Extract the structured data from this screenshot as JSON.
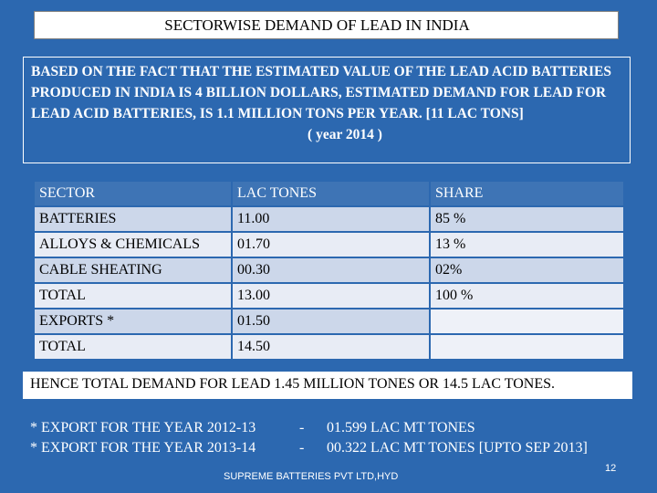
{
  "title": "SECTORWISE DEMAND OF LEAD IN INDIA",
  "intro": {
    "text": "BASED ON THE FACT THAT THE ESTIMATED VALUE OF THE LEAD ACID BATTERIES PRODUCED IN INDIA IS 4 BILLION DOLLARS, ESTIMATED DEMAND FOR LEAD FOR LEAD ACID BATTERIES,  IS 1.1 MILLION TONS PER YEAR. [11 LAC TONS]",
    "year": "( year 2014 )"
  },
  "table": {
    "headers": [
      "SECTOR",
      "LAC TONES",
      "SHARE"
    ],
    "rows": [
      [
        "BATTERIES",
        "11.00",
        "85 %"
      ],
      [
        "ALLOYS & CHEMICALS",
        "01.70",
        "13 %"
      ],
      [
        "CABLE SHEATING",
        "00.30",
        "02%"
      ],
      [
        "TOTAL",
        "13.00",
        "100 %"
      ],
      [
        "EXPORTS *",
        "01.50",
        ""
      ],
      [
        "TOTAL",
        "14.50",
        ""
      ]
    ]
  },
  "hence": "HENCE TOTAL DEMAND FOR LEAD 1.45 MILLION TONES OR 14.5 LAC TONES.",
  "exports": [
    {
      "label": "* EXPORT FOR THE YEAR 2012-13",
      "dash": "-",
      "value": "01.599 LAC MT TONES"
    },
    {
      "label": "* EXPORT FOR THE YEAR 2013-14",
      "dash": "-",
      "value": "00.322 LAC MT TONES [UPTO SEP 2013]"
    }
  ],
  "footer": {
    "company": "SUPREME BATTERIES PVT LTD,HYD",
    "page_number": "12"
  },
  "colors": {
    "background": "#2c68b0",
    "row_dark": "#ccd7ea",
    "row_light": "#e8ecf5"
  }
}
